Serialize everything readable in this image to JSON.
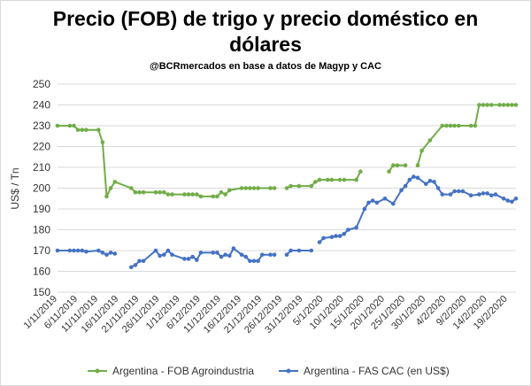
{
  "chart_data": {
    "type": "line",
    "title_line1": "Precio (FOB) de trigo y precio doméstico en",
    "title_line2": "dólares",
    "subtitle": "@BCRmercados en base a datos de Magyp y CAC",
    "ylabel": "US$ / Tn",
    "ylim": [
      150,
      250
    ],
    "yticks": [
      150,
      160,
      170,
      180,
      190,
      200,
      210,
      220,
      230,
      240,
      250
    ],
    "xlim": [
      "2019-11-01",
      "2020-02-21"
    ],
    "xtick_labels": [
      "1/11/2019",
      "6/11/2019",
      "11/11/2019",
      "16/11/2019",
      "21/11/2019",
      "26/11/2019",
      "1/12/2019",
      "6/12/2019",
      "11/12/2019",
      "16/12/2019",
      "21/12/2019",
      "26/12/2019",
      "31/12/2019",
      "5/1/2020",
      "10/1/2020",
      "15/1/2020",
      "20/1/2020",
      "25/1/2020",
      "30/1/2020",
      "4/2/2020",
      "9/2/2020",
      "14/2/2020",
      "19/2/2020"
    ],
    "xtick_dates": [
      "2019-11-01",
      "2019-11-06",
      "2019-11-11",
      "2019-11-16",
      "2019-11-21",
      "2019-11-26",
      "2019-12-01",
      "2019-12-06",
      "2019-12-11",
      "2019-12-16",
      "2019-12-21",
      "2019-12-26",
      "2019-12-31",
      "2020-01-05",
      "2020-01-10",
      "2020-01-15",
      "2020-01-20",
      "2020-01-25",
      "2020-01-30",
      "2020-02-04",
      "2020-02-09",
      "2020-02-14",
      "2020-02-19"
    ],
    "grid": "horizontal",
    "legend_position": "bottom",
    "series": [
      {
        "name": "Argentina - FOB Agroindustria",
        "color": "#70ad47",
        "points": [
          [
            "2019-11-01",
            230
          ],
          [
            "2019-11-04",
            230
          ],
          [
            "2019-11-05",
            230
          ],
          [
            "2019-11-06",
            228
          ],
          [
            "2019-11-07",
            228
          ],
          [
            "2019-11-08",
            228
          ],
          [
            "2019-11-11",
            228
          ],
          [
            "2019-11-12",
            222
          ],
          [
            "2019-11-13",
            196
          ],
          [
            "2019-11-14",
            200
          ],
          [
            "2019-11-15",
            203
          ],
          [
            "2019-11-19",
            200
          ],
          [
            "2019-11-20",
            198
          ],
          [
            "2019-11-21",
            198
          ],
          [
            "2019-11-22",
            198
          ],
          [
            "2019-11-25",
            198
          ],
          [
            "2019-11-26",
            198
          ],
          [
            "2019-11-27",
            198
          ],
          [
            "2019-11-28",
            197
          ],
          [
            "2019-11-29",
            197
          ],
          [
            "2019-12-02",
            197
          ],
          [
            "2019-12-03",
            197
          ],
          [
            "2019-12-04",
            197
          ],
          [
            "2019-12-05",
            197
          ],
          [
            "2019-12-06",
            196
          ],
          [
            "2019-12-09",
            196
          ],
          [
            "2019-12-10",
            196
          ],
          [
            "2019-12-11",
            198
          ],
          [
            "2019-12-12",
            197
          ],
          [
            "2019-12-13",
            199
          ],
          [
            "2019-12-16",
            200
          ],
          [
            "2019-12-17",
            200
          ],
          [
            "2019-12-18",
            200
          ],
          [
            "2019-12-19",
            200
          ],
          [
            "2019-12-20",
            200
          ],
          [
            "2019-12-23",
            200
          ],
          [
            "2019-12-24",
            200
          ],
          null,
          [
            "2019-12-27",
            200
          ],
          [
            "2019-12-28",
            201
          ],
          [
            "2019-12-30",
            201
          ],
          [
            "2020-01-02",
            201
          ],
          [
            "2020-01-03",
            203
          ],
          [
            "2020-01-04",
            204
          ],
          [
            "2020-01-06",
            204
          ],
          [
            "2020-01-07",
            204
          ],
          [
            "2020-01-09",
            204
          ],
          null,
          [
            "2020-01-10",
            204
          ],
          [
            "2020-01-13",
            204
          ],
          [
            "2020-01-14",
            208
          ],
          null,
          [
            "2020-01-21",
            208
          ],
          [
            "2020-01-22",
            211
          ],
          [
            "2020-01-23",
            211
          ],
          [
            "2020-01-25",
            211
          ],
          null,
          [
            "2020-01-28",
            211
          ],
          [
            "2020-01-29",
            218
          ],
          [
            "2020-01-31",
            223
          ],
          [
            "2020-02-03",
            230
          ],
          [
            "2020-02-04",
            230
          ],
          [
            "2020-02-05",
            230
          ],
          [
            "2020-02-06",
            230
          ],
          [
            "2020-02-07",
            230
          ],
          [
            "2020-02-10",
            230
          ],
          [
            "2020-02-11",
            230
          ],
          [
            "2020-02-12",
            240
          ],
          [
            "2020-02-13",
            240
          ],
          [
            "2020-02-14",
            240
          ],
          [
            "2020-02-15",
            240
          ],
          [
            "2020-02-17",
            240
          ],
          [
            "2020-02-18",
            240
          ],
          [
            "2020-02-19",
            240
          ],
          [
            "2020-02-20",
            240
          ],
          [
            "2020-02-21",
            240
          ]
        ]
      },
      {
        "name": "Argentina - FAS CAC (en US$)",
        "color": "#4472c4",
        "points": [
          [
            "2019-11-01",
            170
          ],
          [
            "2019-11-04",
            170
          ],
          [
            "2019-11-05",
            170
          ],
          [
            "2019-11-06",
            170
          ],
          [
            "2019-11-07",
            170
          ],
          [
            "2019-11-08",
            169.5
          ],
          [
            "2019-11-11",
            170
          ],
          [
            "2019-11-12",
            169
          ],
          [
            "2019-11-13",
            168
          ],
          [
            "2019-11-14",
            169
          ],
          [
            "2019-11-15",
            168.5
          ],
          null,
          [
            "2019-11-19",
            162
          ],
          [
            "2019-11-20",
            163
          ],
          [
            "2019-11-21",
            165
          ],
          [
            "2019-11-22",
            165
          ],
          [
            "2019-11-25",
            170
          ],
          [
            "2019-11-26",
            167.5
          ],
          [
            "2019-11-27",
            168
          ],
          [
            "2019-11-28",
            170
          ],
          [
            "2019-11-29",
            168
          ],
          [
            "2019-12-02",
            166
          ],
          [
            "2019-12-03",
            166
          ],
          [
            "2019-12-04",
            167
          ],
          [
            "2019-12-05",
            165.5
          ],
          [
            "2019-12-06",
            169
          ],
          [
            "2019-12-09",
            169
          ],
          [
            "2019-12-10",
            169
          ],
          [
            "2019-12-11",
            167
          ],
          [
            "2019-12-12",
            168
          ],
          [
            "2019-12-13",
            167.5
          ],
          [
            "2019-12-14",
            171
          ],
          [
            "2019-12-16",
            168
          ],
          [
            "2019-12-17",
            167
          ],
          [
            "2019-12-18",
            165
          ],
          [
            "2019-12-19",
            165
          ],
          [
            "2019-12-20",
            165
          ],
          [
            "2019-12-21",
            168
          ],
          [
            "2019-12-23",
            168
          ],
          [
            "2019-12-24",
            168
          ],
          null,
          [
            "2019-12-27",
            168
          ],
          [
            "2019-12-28",
            170
          ],
          [
            "2019-12-30",
            170
          ],
          [
            "2020-01-02",
            170
          ],
          null,
          [
            "2020-01-04",
            174
          ],
          [
            "2020-01-05",
            176
          ],
          [
            "2020-01-07",
            176.5
          ],
          [
            "2020-01-08",
            177
          ],
          [
            "2020-01-09",
            177
          ],
          [
            "2020-01-10",
            178
          ],
          [
            "2020-01-11",
            180
          ],
          [
            "2020-01-13",
            181
          ],
          [
            "2020-01-15",
            190
          ],
          [
            "2020-01-16",
            193
          ],
          [
            "2020-01-17",
            194
          ],
          [
            "2020-01-18",
            193
          ],
          [
            "2020-01-20",
            195
          ],
          [
            "2020-01-22",
            192.5
          ],
          [
            "2020-01-24",
            199
          ],
          [
            "2020-01-25",
            201
          ],
          [
            "2020-01-26",
            204
          ],
          [
            "2020-01-27",
            205.5
          ],
          [
            "2020-01-28",
            205
          ],
          [
            "2020-01-30",
            202
          ],
          [
            "2020-01-31",
            203.5
          ],
          [
            "2020-02-01",
            203
          ],
          [
            "2020-02-02",
            200
          ],
          [
            "2020-02-03",
            197
          ],
          [
            "2020-02-05",
            197
          ],
          [
            "2020-02-06",
            198.5
          ],
          [
            "2020-02-07",
            198.5
          ],
          [
            "2020-02-08",
            198.5
          ],
          [
            "2020-02-10",
            196.5
          ],
          [
            "2020-02-12",
            197
          ],
          [
            "2020-02-13",
            197.5
          ],
          [
            "2020-02-14",
            197.5
          ],
          [
            "2020-02-15",
            196.5
          ],
          [
            "2020-02-16",
            197
          ],
          [
            "2020-02-18",
            195
          ],
          [
            "2020-02-19",
            194
          ],
          [
            "2020-02-20",
            193.5
          ],
          [
            "2020-02-21",
            195
          ]
        ]
      }
    ]
  }
}
